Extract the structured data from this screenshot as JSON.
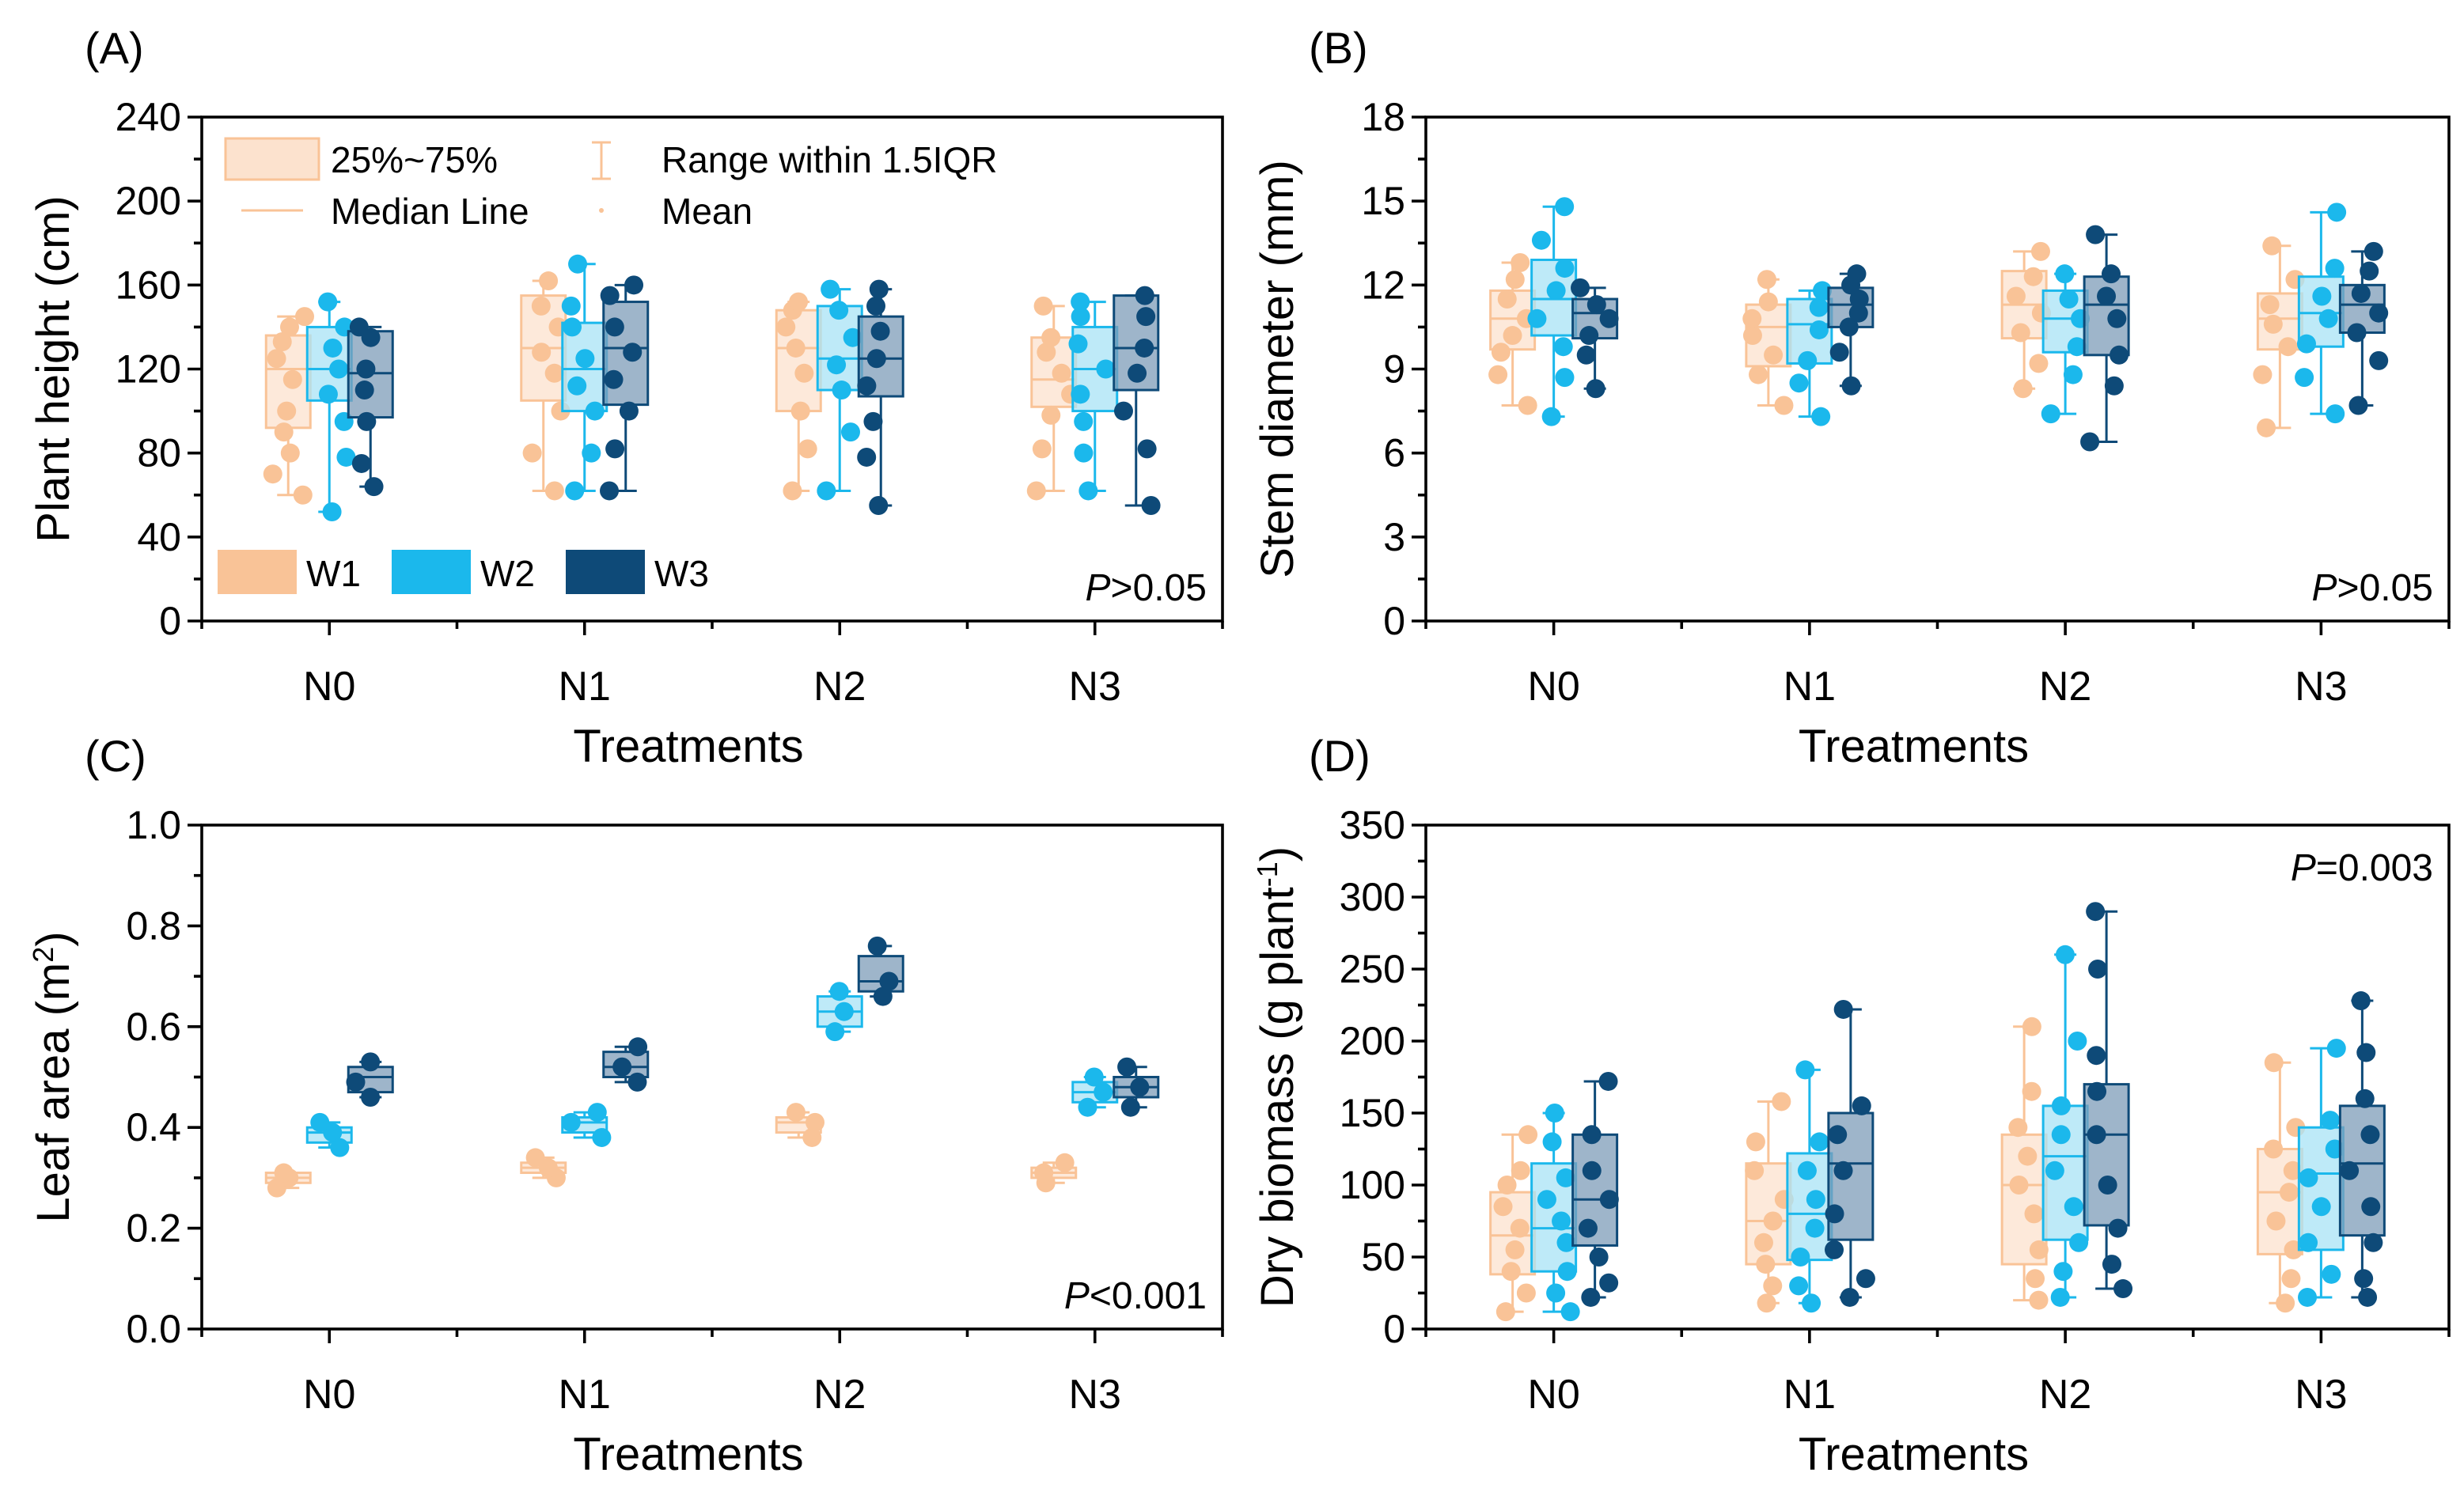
{
  "colors": {
    "W1": "#F9C397",
    "W2": "#1BB8EC",
    "W3": "#0E4A78",
    "W1_box": "#FCE2CE",
    "W2_box": "#A8E3F6",
    "W3_box": "#7E9CB8"
  },
  "legend": {
    "box_label": "25%~75%",
    "whisker_label": "Range within 1.5IQR",
    "median_label": "Median Line",
    "mean_label": "Mean",
    "groups": [
      "W1",
      "W2",
      "W3"
    ]
  },
  "chart_data": [
    {
      "type": "box",
      "panel_label": "(A)",
      "ylabel": "Plant height (cm)",
      "xlabel": "Treatments",
      "ylim": [
        0,
        240
      ],
      "yticks": [
        "0",
        "40",
        "80",
        "120",
        "160",
        "200",
        "240"
      ],
      "categories": [
        "N0",
        "N1",
        "N2",
        "N3"
      ],
      "p_prefix": "P",
      "p_value": ">0.05",
      "series": [
        {
          "name": "W1",
          "values": [
            [
              92,
              120,
              136
            ],
            [
              105,
              130,
              155
            ],
            [
              100,
              130,
              148
            ],
            [
              102,
              115,
              135
            ]
          ],
          "points": [
            [
              60,
              70,
              80,
              90,
              100,
              115,
              125,
              133,
              140,
              145
            ],
            [
              62,
              80,
              100,
              118,
              128,
              140,
              150,
              162
            ],
            [
              62,
              82,
              100,
              118,
              130,
              140,
              148,
              152
            ],
            [
              62,
              82,
              98,
              108,
              118,
              128,
              135,
              150
            ]
          ]
        },
        {
          "name": "W2",
          "values": [
            [
              105,
              120,
              140
            ],
            [
              100,
              120,
              142
            ],
            [
              110,
              125,
              150
            ],
            [
              100,
              120,
              140
            ]
          ],
          "points": [
            [
              52,
              78,
              95,
              108,
              120,
              130,
              140,
              152
            ],
            [
              62,
              80,
              100,
              112,
              125,
              140,
              150,
              170
            ],
            [
              62,
              90,
              110,
              122,
              135,
              148,
              158
            ],
            [
              62,
              80,
              95,
              108,
              120,
              132,
              145,
              152
            ]
          ]
        },
        {
          "name": "W3",
          "values": [
            [
              97,
              118,
              138
            ],
            [
              103,
              130,
              152
            ],
            [
              107,
              125,
              145
            ],
            [
              110,
              130,
              155
            ]
          ],
          "points": [
            [
              64,
              75,
              95,
              110,
              120,
              135,
              140
            ],
            [
              62,
              82,
              100,
              115,
              128,
              140,
              155,
              160
            ],
            [
              55,
              78,
              95,
              112,
              125,
              138,
              150,
              158
            ],
            [
              55,
              82,
              100,
              118,
              130,
              145,
              155
            ]
          ]
        }
      ]
    },
    {
      "type": "box",
      "panel_label": "(B)",
      "ylabel": "Stem diameter (mm)",
      "xlabel": "Treatments",
      "ylim": [
        0,
        18
      ],
      "yticks": [
        "0",
        "3",
        "6",
        "9",
        "12",
        "15",
        "18"
      ],
      "categories": [
        "N0",
        "N1",
        "N2",
        "N3"
      ],
      "p_prefix": "P",
      "p_value": ">0.05",
      "series": [
        {
          "name": "W1",
          "values": [
            [
              9.7,
              10.8,
              11.8
            ],
            [
              9.1,
              10.5,
              11.3
            ],
            [
              10.1,
              11.3,
              12.5
            ],
            [
              9.7,
              10.8,
              11.7
            ]
          ],
          "points": [
            [
              7.7,
              8.8,
              9.6,
              10.2,
              10.8,
              11.5,
              12.2,
              12.8
            ],
            [
              7.7,
              8.8,
              9.5,
              10.2,
              10.8,
              11.4,
              12.2
            ],
            [
              8.3,
              9.2,
              10.3,
              11,
              11.6,
              12.3,
              13.2
            ],
            [
              6.9,
              8.8,
              9.8,
              10.6,
              11.3,
              12.2,
              13.4
            ]
          ]
        },
        {
          "name": "W2",
          "values": [
            [
              10.2,
              11.5,
              12.9
            ],
            [
              9.2,
              10.6,
              11.5
            ],
            [
              9.6,
              10.8,
              11.8
            ],
            [
              9.8,
              11.0,
              12.3
            ]
          ],
          "points": [
            [
              7.3,
              8.7,
              9.8,
              10.8,
              11.8,
              12.6,
              13.6,
              14.8
            ],
            [
              7.3,
              8.5,
              9.3,
              10.4,
              11.2,
              11.8
            ],
            [
              7.4,
              8.8,
              9.8,
              10.8,
              11.5,
              12.4
            ],
            [
              7.4,
              8.7,
              9.9,
              10.8,
              11.6,
              12.6,
              14.6
            ]
          ]
        },
        {
          "name": "W3",
          "values": [
            [
              10.1,
              11.0,
              11.5
            ],
            [
              10.5,
              11.3,
              11.9
            ],
            [
              9.5,
              11.3,
              12.3
            ],
            [
              10.3,
              11.3,
              12.0
            ]
          ],
          "points": [
            [
              8.3,
              9.5,
              10.2,
              10.8,
              11.3,
              11.9
            ],
            [
              8.4,
              9.6,
              10.5,
              11,
              11.5,
              12,
              12.4
            ],
            [
              6.4,
              8.4,
              9.5,
              10.8,
              11.6,
              12.4,
              13.8
            ],
            [
              7.7,
              9.3,
              10.3,
              11,
              11.7,
              12.5,
              13.2
            ]
          ]
        }
      ]
    },
    {
      "type": "box",
      "panel_label": "(C)",
      "ylabel": "Leaf area (m",
      "ylabel_sup": "2",
      "ylabel_tail": ")",
      "xlabel": "Treatments",
      "ylim": [
        0,
        1.0
      ],
      "yticks": [
        "0.0",
        "0.2",
        "0.4",
        "0.6",
        "0.8",
        "1.0"
      ],
      "categories": [
        "N0",
        "N1",
        "N2",
        "N3"
      ],
      "p_prefix": "P",
      "p_value": "<0.001",
      "series": [
        {
          "name": "W1",
          "values": [
            [
              0.29,
              0.3,
              0.31
            ],
            [
              0.31,
              0.32,
              0.33
            ],
            [
              0.39,
              0.41,
              0.42
            ],
            [
              0.3,
              0.31,
              0.32
            ]
          ],
          "points": [
            [
              0.28,
              0.3,
              0.31
            ],
            [
              0.3,
              0.32,
              0.34
            ],
            [
              0.38,
              0.41,
              0.43
            ],
            [
              0.29,
              0.31,
              0.33
            ]
          ]
        },
        {
          "name": "W2",
          "values": [
            [
              0.37,
              0.39,
              0.4
            ],
            [
              0.39,
              0.41,
              0.42
            ],
            [
              0.6,
              0.63,
              0.66
            ],
            [
              0.45,
              0.47,
              0.49
            ]
          ],
          "points": [
            [
              0.36,
              0.39,
              0.41
            ],
            [
              0.38,
              0.41,
              0.43
            ],
            [
              0.59,
              0.63,
              0.67
            ],
            [
              0.44,
              0.47,
              0.5
            ]
          ]
        },
        {
          "name": "W3",
          "values": [
            [
              0.47,
              0.5,
              0.52
            ],
            [
              0.5,
              0.52,
              0.55
            ],
            [
              0.67,
              0.69,
              0.74
            ],
            [
              0.46,
              0.48,
              0.5
            ]
          ],
          "points": [
            [
              0.46,
              0.49,
              0.53
            ],
            [
              0.49,
              0.52,
              0.56
            ],
            [
              0.66,
              0.69,
              0.76
            ],
            [
              0.44,
              0.48,
              0.52
            ]
          ]
        }
      ]
    },
    {
      "type": "box",
      "panel_label": "(D)",
      "ylabel": "Dry biomass (g plant",
      "ylabel_sup": "-1",
      "ylabel_tail": ")",
      "xlabel": "Treatments",
      "ylim": [
        0,
        350
      ],
      "yticks": [
        "0",
        "50",
        "100",
        "150",
        "200",
        "250",
        "300",
        "350"
      ],
      "categories": [
        "N0",
        "N1",
        "N2",
        "N3"
      ],
      "p_prefix": "P",
      "p_value": "=0.003",
      "series": [
        {
          "name": "W1",
          "values": [
            [
              38,
              65,
              95
            ],
            [
              45,
              75,
              115
            ],
            [
              45,
              100,
              135
            ],
            [
              52,
              95,
              125
            ]
          ],
          "points": [
            [
              12,
              25,
              40,
              55,
              70,
              85,
              100,
              110,
              135
            ],
            [
              18,
              30,
              45,
              60,
              75,
              90,
              110,
              130,
              158
            ],
            [
              20,
              35,
              55,
              80,
              100,
              120,
              140,
              165,
              210
            ],
            [
              18,
              35,
              55,
              75,
              95,
              110,
              125,
              140,
              185
            ]
          ]
        },
        {
          "name": "W2",
          "values": [
            [
              40,
              70,
              115
            ],
            [
              48,
              80,
              122
            ],
            [
              62,
              120,
              155
            ],
            [
              55,
              108,
              140
            ]
          ],
          "points": [
            [
              12,
              25,
              40,
              60,
              75,
              90,
              105,
              130,
              150
            ],
            [
              18,
              30,
              50,
              70,
              90,
              110,
              130,
              180
            ],
            [
              22,
              40,
              60,
              85,
              110,
              135,
              155,
              200,
              260
            ],
            [
              22,
              38,
              60,
              85,
              105,
              125,
              145,
              195
            ]
          ]
        },
        {
          "name": "W3",
          "values": [
            [
              58,
              90,
              135
            ],
            [
              62,
              115,
              150
            ],
            [
              72,
              135,
              170
            ],
            [
              65,
              115,
              155
            ]
          ],
          "points": [
            [
              22,
              32,
              50,
              70,
              90,
              110,
              135,
              172
            ],
            [
              22,
              35,
              55,
              80,
              110,
              135,
              155,
              222
            ],
            [
              28,
              45,
              70,
              100,
              135,
              165,
              190,
              250,
              290
            ],
            [
              22,
              35,
              60,
              85,
              110,
              135,
              160,
              192,
              228
            ]
          ]
        }
      ]
    }
  ]
}
